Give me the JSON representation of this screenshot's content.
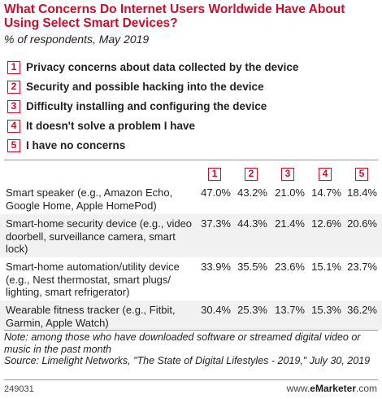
{
  "title": "What Concerns Do Internet Users Worldwide Have About Using Select Smart Devices?",
  "subtitle": "% of respondents, May 2019",
  "accent_color": "#c8102e",
  "legend": [
    {
      "num": "1",
      "label": "Privacy concerns about data collected by the device"
    },
    {
      "num": "2",
      "label": "Security and possible hacking into the device"
    },
    {
      "num": "3",
      "label": "Difficulty installing and configuring the device"
    },
    {
      "num": "4",
      "label": "It doesn't solve a problem I have"
    },
    {
      "num": "5",
      "label": "I have no concerns"
    }
  ],
  "chart_data": {
    "type": "table",
    "columns": [
      "1",
      "2",
      "3",
      "4",
      "5"
    ],
    "column_meaning": [
      "Privacy concerns about data collected by the device",
      "Security and possible hacking into the device",
      "Difficulty installing and configuring the device",
      "It doesn't solve a problem I have",
      "I have no concerns"
    ],
    "rows": [
      {
        "label": "Smart speaker (e.g., Amazon Echo, Google Home, Apple HomePod)",
        "values": [
          "47.0%",
          "43.2%",
          "21.0%",
          "14.7%",
          "18.4%"
        ]
      },
      {
        "label": "Smart-home security device (e.g., video doorbell, surveillance camera, smart lock)",
        "values": [
          "37.3%",
          "44.3%",
          "21.4%",
          "12.6%",
          "20.6%"
        ]
      },
      {
        "label": "Smart-home automation/utility device (e.g., Nest thermostat, smart plugs/ lighting, smart refrigerator)",
        "values": [
          "33.9%",
          "35.5%",
          "23.6%",
          "15.1%",
          "23.7%"
        ]
      },
      {
        "label": "Wearable fitness tracker (e.g., Fitbit, Garmin, Apple Watch)",
        "values": [
          "30.4%",
          "25.3%",
          "13.7%",
          "15.3%",
          "36.2%"
        ]
      }
    ]
  },
  "note": "Note: among those who have downloaded software or streamed digital video or music in the past month",
  "source": "Source: Limelight Networks, \"The State of Digital Lifestyles - 2019,\" July 30, 2019",
  "footer": {
    "id": "249031",
    "brand_prefix": "www.",
    "brand_name": "eMarketer",
    "brand_suffix": ".com"
  }
}
